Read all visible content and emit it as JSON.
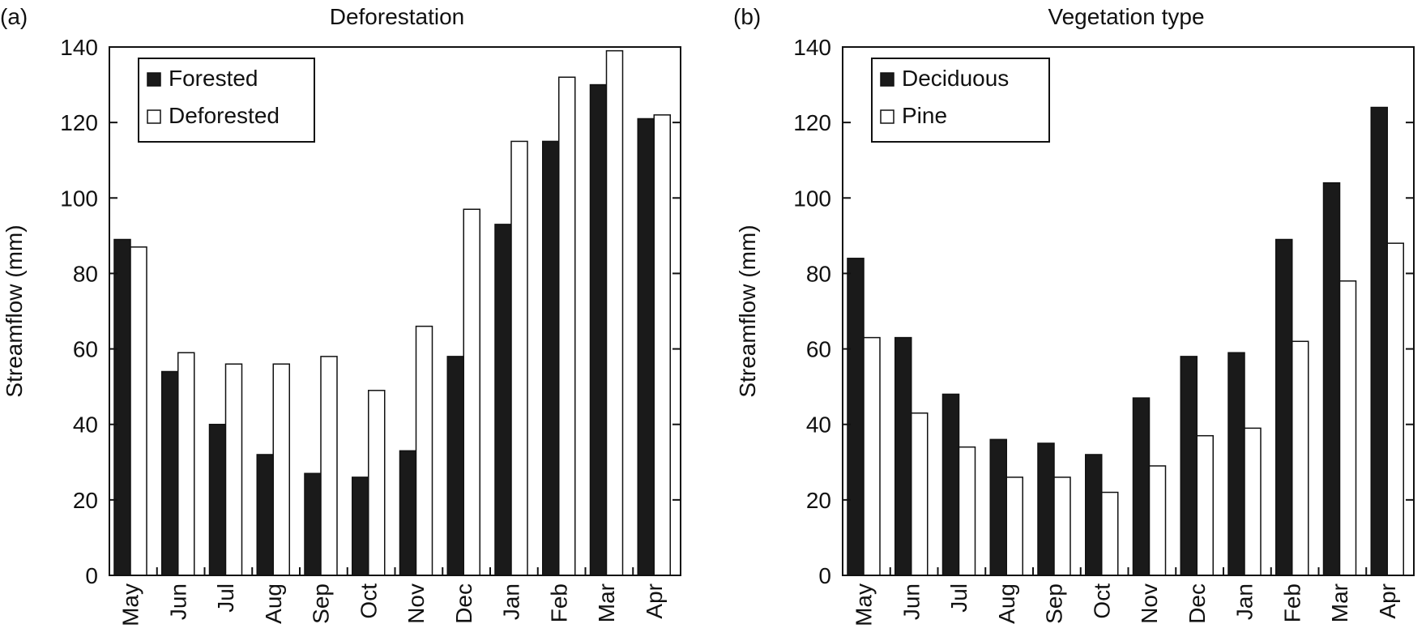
{
  "colors": {
    "filled": "#1a1a1a",
    "open": "#ffffff",
    "axis": "#111111"
  },
  "chart_data": [
    {
      "type": "bar",
      "panel_label": "(a)",
      "title": "Deforestation",
      "xlabel": "",
      "ylabel": "Streamflow (mm)",
      "ylim": [
        0,
        140
      ],
      "yticks": [
        0,
        20,
        40,
        60,
        80,
        100,
        120,
        140
      ],
      "grid": false,
      "legend_position": "top-left",
      "categories": [
        "May",
        "Jun",
        "Jul",
        "Aug",
        "Sep",
        "Oct",
        "Nov",
        "Dec",
        "Jan",
        "Feb",
        "Mar",
        "Apr"
      ],
      "series": [
        {
          "name": "Forested",
          "style": "filled",
          "values": [
            89,
            54,
            40,
            32,
            27,
            26,
            33,
            58,
            93,
            115,
            130,
            121
          ]
        },
        {
          "name": "Deforested",
          "style": "open",
          "values": [
            87,
            59,
            56,
            56,
            58,
            49,
            66,
            97,
            115,
            132,
            139,
            122
          ]
        }
      ]
    },
    {
      "type": "bar",
      "panel_label": "(b)",
      "title": "Vegetation type",
      "xlabel": "",
      "ylabel": "Streamflow (mm)",
      "ylim": [
        0,
        140
      ],
      "yticks": [
        0,
        20,
        40,
        60,
        80,
        100,
        120,
        140
      ],
      "grid": false,
      "legend_position": "top-left",
      "categories": [
        "May",
        "Jun",
        "Jul",
        "Aug",
        "Sep",
        "Oct",
        "Nov",
        "Dec",
        "Jan",
        "Feb",
        "Mar",
        "Apr"
      ],
      "series": [
        {
          "name": "Deciduous",
          "style": "filled",
          "values": [
            84,
            63,
            48,
            36,
            35,
            32,
            47,
            58,
            59,
            89,
            104,
            124
          ]
        },
        {
          "name": "Pine",
          "style": "open",
          "values": [
            63,
            43,
            34,
            26,
            26,
            22,
            29,
            37,
            39,
            62,
            78,
            88
          ]
        }
      ]
    }
  ]
}
